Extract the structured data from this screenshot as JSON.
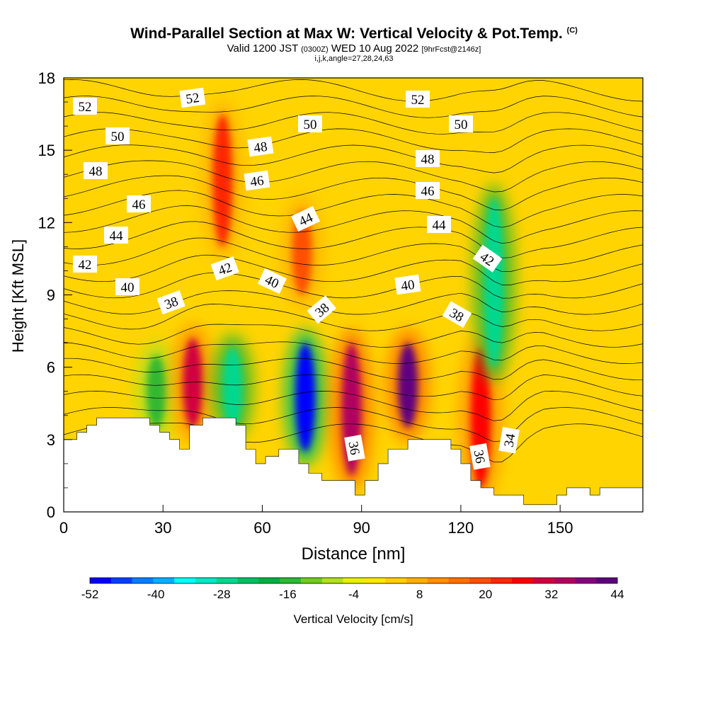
{
  "title": "Wind-Parallel Section at Max W: Vertical Velocity & Pot.Temp.",
  "title_mark": "(C)",
  "subtitle_main": "Valid 1200 JST",
  "subtitle_utc": "(0300Z)",
  "subtitle_date": "WED 10 Aug 2022",
  "subtitle_fcst": "[9hrFcst@2146z]",
  "subtitle_ijk": "i,j,k,angle=27,28,24,63",
  "chart_data": {
    "type": "heatmap",
    "xlabel": "Distance [nm]",
    "ylabel": "Height [Kft MSL]",
    "xlim": [
      0,
      175
    ],
    "ylim": [
      0,
      18
    ],
    "x_ticks": [
      0,
      30,
      60,
      90,
      120,
      150
    ],
    "y_ticks": [
      0,
      3,
      6,
      9,
      12,
      15,
      18
    ],
    "colorbar": {
      "label": "Vertical Velocity [cm/s]",
      "tick_labels": [
        "-52",
        "-40",
        "-28",
        "-16",
        "-4",
        "8",
        "20",
        "32",
        "44"
      ],
      "levels": [
        -52,
        -48,
        -44,
        -40,
        -36,
        -32,
        -28,
        -24,
        -20,
        -16,
        -12,
        -8,
        -4,
        0,
        4,
        8,
        12,
        16,
        20,
        24,
        28,
        32,
        36,
        40,
        44
      ],
      "colors": [
        "#0000ff",
        "#0040ff",
        "#0080ff",
        "#00b0ff",
        "#00ffff",
        "#00e8c8",
        "#00d890",
        "#00c060",
        "#00b040",
        "#30b830",
        "#70cc20",
        "#b0e020",
        "#e8f000",
        "#ffe800",
        "#ffd000",
        "#ffb000",
        "#ff9000",
        "#ff7000",
        "#ff5000",
        "#ff2800",
        "#ff0000",
        "#d00040",
        "#b00060",
        "#880080",
        "#600080"
      ]
    },
    "theta_contour_labels": [
      "52",
      "52",
      "52",
      "50",
      "50",
      "50",
      "48",
      "48",
      "48",
      "46",
      "46",
      "46",
      "44",
      "44",
      "44",
      "42",
      "42",
      "42",
      "40",
      "40",
      "40",
      "38",
      "38",
      "38",
      "36",
      "36",
      "34"
    ],
    "vertical_velocity_features": [
      {
        "x": 28,
        "y_range": [
          3.5,
          6.5
        ],
        "w": -16,
        "label": "downdraft"
      },
      {
        "x": 39,
        "y_range": [
          3.5,
          7.2
        ],
        "w": 32,
        "label": "updraft"
      },
      {
        "x": 51,
        "y_range": [
          3.5,
          6.8
        ],
        "w": -28,
        "label": "downdraft"
      },
      {
        "x": 73,
        "y_range": [
          2.5,
          7.0
        ],
        "w": -52,
        "label": "downdraft"
      },
      {
        "x": 87,
        "y_range": [
          1.5,
          7.0
        ],
        "w": 36,
        "label": "updraft"
      },
      {
        "x": 104,
        "y_range": [
          3.5,
          7.0
        ],
        "w": 44,
        "label": "updraft"
      },
      {
        "x": 126,
        "y_range": [
          1.0,
          6.8
        ],
        "w": 28,
        "label": "updraft"
      },
      {
        "x": 130,
        "y_range": [
          6.0,
          13.0
        ],
        "w": -28,
        "label": "downdraft"
      },
      {
        "x": 48,
        "y_range": [
          11.0,
          16.5
        ],
        "w": 24,
        "label": "updraft"
      },
      {
        "x": 72,
        "y_range": [
          9.0,
          12.5
        ],
        "w": 20,
        "label": "updraft"
      }
    ],
    "terrain_top_kft": [
      [
        0,
        3.0
      ],
      [
        4,
        3.0
      ],
      [
        4,
        3.3
      ],
      [
        7,
        3.3
      ],
      [
        7,
        3.6
      ],
      [
        10,
        3.6
      ],
      [
        10,
        3.9
      ],
      [
        26,
        3.9
      ],
      [
        26,
        3.6
      ],
      [
        29,
        3.6
      ],
      [
        29,
        3.3
      ],
      [
        32,
        3.3
      ],
      [
        32,
        3.0
      ],
      [
        35,
        3.0
      ],
      [
        35,
        2.6
      ],
      [
        38,
        2.6
      ],
      [
        38,
        3.6
      ],
      [
        42,
        3.6
      ],
      [
        42,
        3.9
      ],
      [
        52,
        3.9
      ],
      [
        52,
        3.6
      ],
      [
        55,
        3.6
      ],
      [
        55,
        2.6
      ],
      [
        58,
        2.6
      ],
      [
        58,
        2.0
      ],
      [
        61,
        2.0
      ],
      [
        61,
        2.3
      ],
      [
        65,
        2.3
      ],
      [
        65,
        2.6
      ],
      [
        71,
        2.6
      ],
      [
        71,
        2.0
      ],
      [
        74,
        2.0
      ],
      [
        74,
        1.6
      ],
      [
        78,
        1.6
      ],
      [
        78,
        1.3
      ],
      [
        88,
        1.3
      ],
      [
        88,
        0.7
      ],
      [
        91,
        0.7
      ],
      [
        91,
        1.3
      ],
      [
        95,
        1.3
      ],
      [
        95,
        2.0
      ],
      [
        98,
        2.0
      ],
      [
        98,
        2.6
      ],
      [
        104,
        2.6
      ],
      [
        104,
        3.0
      ],
      [
        117,
        3.0
      ],
      [
        117,
        2.6
      ],
      [
        120,
        2.6
      ],
      [
        120,
        2.0
      ],
      [
        123,
        2.0
      ],
      [
        123,
        1.3
      ],
      [
        126,
        1.3
      ],
      [
        126,
        1.0
      ],
      [
        130,
        1.0
      ],
      [
        130,
        0.7
      ],
      [
        139,
        0.7
      ],
      [
        139,
        0.3
      ],
      [
        149,
        0.3
      ],
      [
        149,
        0.7
      ],
      [
        152,
        0.7
      ],
      [
        152,
        1.0
      ],
      [
        159,
        1.0
      ],
      [
        159,
        0.7
      ],
      [
        162,
        0.7
      ],
      [
        162,
        1.0
      ],
      [
        175,
        1.0
      ]
    ]
  }
}
